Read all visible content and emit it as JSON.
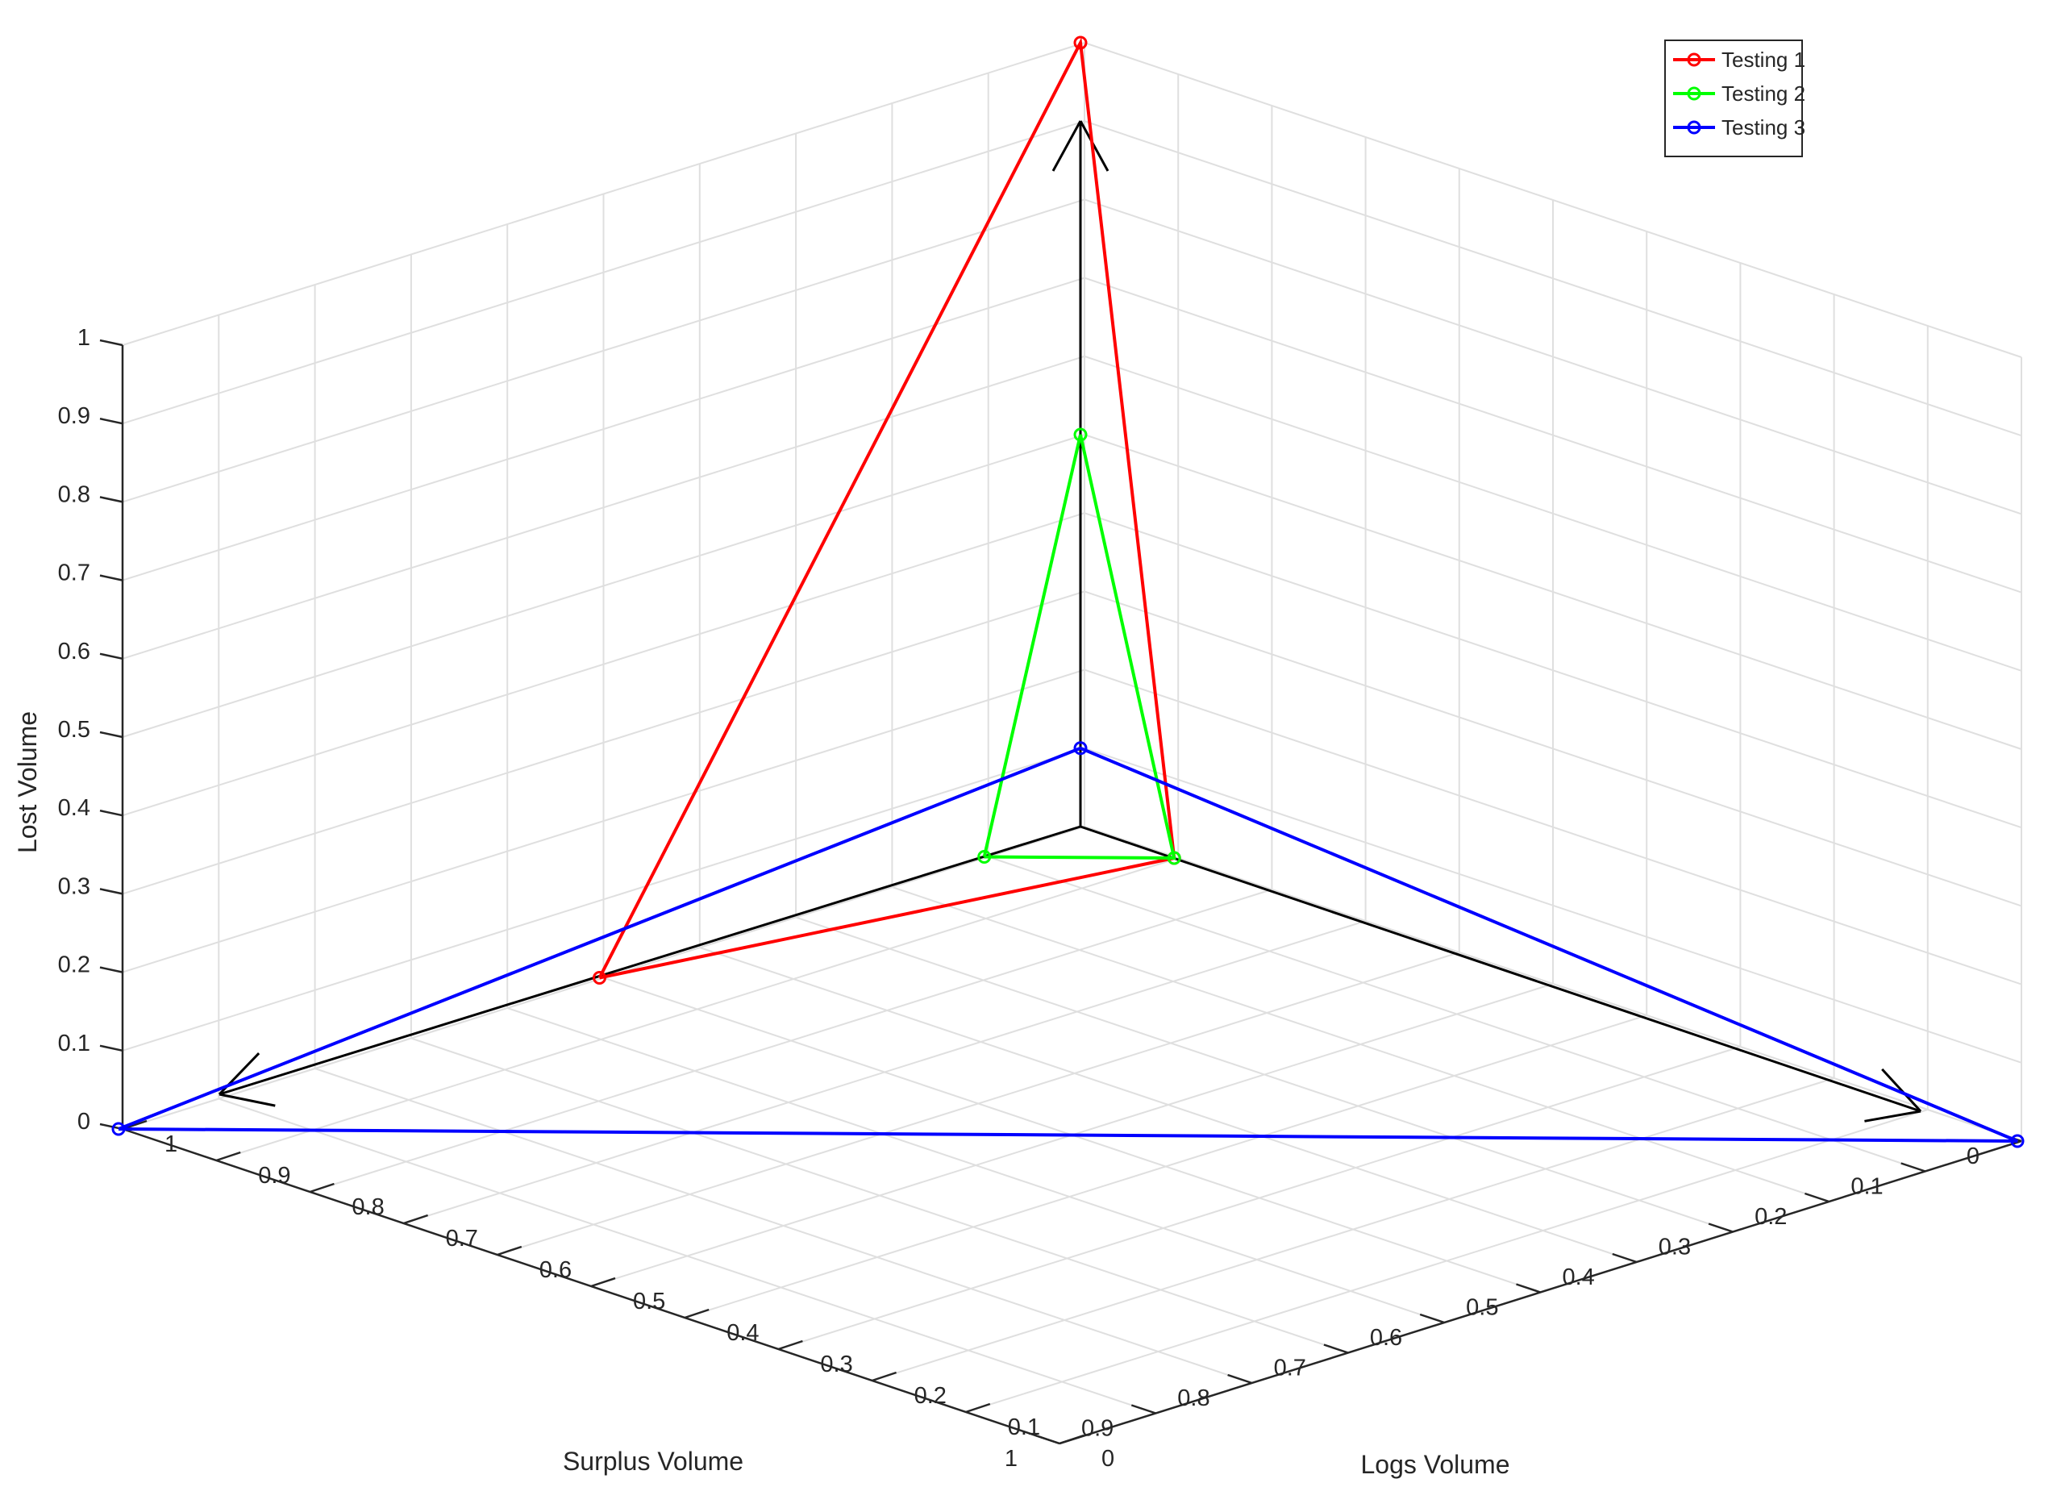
{
  "chart_data": {
    "type": "line",
    "projection": "3d-radar",
    "title": "",
    "xlabel": "Surplus Volume",
    "ylabel": "Logs Volume",
    "zlabel": "Lost Volume",
    "xlim": [
      0,
      1
    ],
    "ylim": [
      0,
      1
    ],
    "zlim": [
      0,
      1
    ],
    "grid": true,
    "legend_position": "top-right",
    "x_ticks": [
      "0",
      "0.1",
      "0.2",
      "0.3",
      "0.4",
      "0.5",
      "0.6",
      "0.7",
      "0.8",
      "0.9",
      "1"
    ],
    "y_ticks": [
      "0",
      "0.1",
      "0.2",
      "0.3",
      "0.4",
      "0.5",
      "0.6",
      "0.7",
      "0.8",
      "0.9",
      "1"
    ],
    "z_ticks": [
      "0",
      "0.1",
      "0.2",
      "0.3",
      "0.4",
      "0.5",
      "0.6",
      "0.7",
      "0.8",
      "0.9",
      "1"
    ],
    "series": [
      {
        "name": "Testing 1",
        "color": "#ff0000",
        "points": [
          {
            "axis": "surplus",
            "value": 0.5
          },
          {
            "axis": "logs",
            "value": 0.1
          },
          {
            "axis": "lost",
            "value": 1.0
          }
        ]
      },
      {
        "name": "Testing 2",
        "color": "#00ff00",
        "points": [
          {
            "axis": "surplus",
            "value": 0.1
          },
          {
            "axis": "logs",
            "value": 0.1
          },
          {
            "axis": "lost",
            "value": 0.5
          }
        ]
      },
      {
        "name": "Testing 3",
        "color": "#0000ff",
        "points": [
          {
            "axis": "surplus",
            "value": 1.0
          },
          {
            "axis": "logs",
            "value": 1.0
          },
          {
            "axis": "lost",
            "value": 0.1
          }
        ]
      }
    ]
  }
}
